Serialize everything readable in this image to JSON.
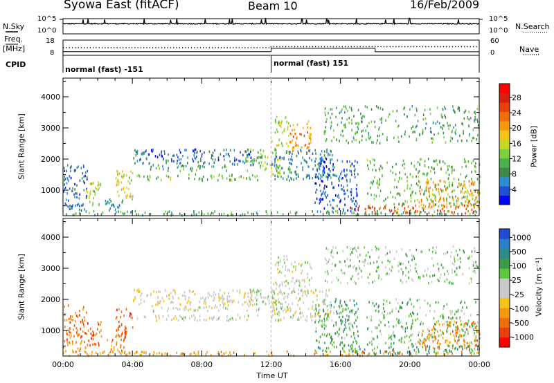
{
  "header": {
    "station": "Syowa East (fitACF)",
    "beam": "Beam 10",
    "date": "16/Feb/2009"
  },
  "side_labels": {
    "nsky": "N.Sky",
    "freq_line1": "Freq.",
    "freq_line2": "[MHz]",
    "cpid": "CPID",
    "nsearch": "N.Search",
    "nave": "Nave"
  },
  "cpid_labels": {
    "first": "normal (fast) -151",
    "second": "normal (fast) 151"
  },
  "chart_data": [
    {
      "type": "line",
      "name": "noise-panel",
      "ylabel_left": "N.Sky",
      "ylabel_right": "N.Search",
      "left_ticks": [
        "10^5",
        "10^0"
      ],
      "right_ticks": [
        "10^5",
        "10^0"
      ],
      "xlim": [
        0,
        24
      ]
    },
    {
      "type": "line",
      "name": "frequency-panel",
      "ylabel_left": "Freq. [MHz]",
      "ylabel_right": "Nave",
      "left_ticks": [
        "18",
        "8"
      ],
      "right_ticks": [
        "60",
        "0"
      ],
      "freq_series": {
        "x": [
          0,
          12,
          12,
          18,
          18,
          24
        ],
        "y": [
          10.4,
          10.4,
          12.6,
          12.6,
          10.3,
          10.3
        ]
      },
      "nave_series": {
        "x": [
          0,
          12,
          12,
          24
        ],
        "y": [
          30,
          30,
          34,
          34
        ]
      },
      "xlim": [
        0,
        24
      ]
    },
    {
      "type": "heatmap",
      "name": "power-panel",
      "ylabel": "Slant Range [km]",
      "yticks": [
        "1000",
        "2000",
        "3000",
        "4000"
      ],
      "ylim": [
        180,
        4600
      ],
      "xlim": [
        0,
        24
      ],
      "colorbar_title": "Power [dB]",
      "colorbar_ticks": [
        "4",
        "8",
        "12",
        "16",
        "20",
        "24",
        "28"
      ],
      "colorbar_colors": [
        "#0000ff",
        "#1e50d2",
        "#2e8bd0",
        "#3c8a46",
        "#49b24b",
        "#7dcf3b",
        "#c9d621",
        "#f5c317",
        "#f59a0f",
        "#f06e0a",
        "#e8400a",
        "#d81e0f",
        "#ff0000"
      ],
      "regions": [
        {
          "t0": 0.0,
          "t1": 1.4,
          "r0": 300,
          "r1": 1800,
          "level": 0.15
        },
        {
          "t0": 1.3,
          "t1": 2.2,
          "r0": 500,
          "r1": 1300,
          "level": 0.45
        },
        {
          "t0": 2.4,
          "t1": 3.4,
          "r0": 300,
          "r1": 700,
          "level": 0.2
        },
        {
          "t0": 3.0,
          "t1": 4.0,
          "r0": 700,
          "r1": 1700,
          "level": 0.55
        },
        {
          "t0": 3.8,
          "t1": 11.2,
          "r0": 1300,
          "r1": 1500,
          "level": 0.35
        },
        {
          "t0": 5.0,
          "t1": 9.5,
          "r0": 1600,
          "r1": 1800,
          "level": 0.3
        },
        {
          "t0": 4.0,
          "t1": 11.0,
          "r0": 1800,
          "r1": 2300,
          "level": 0.12
        },
        {
          "t0": 10.5,
          "t1": 12.0,
          "r0": 1600,
          "r1": 2300,
          "level": 0.4
        },
        {
          "t0": 12.0,
          "t1": 12.5,
          "r0": 1300,
          "r1": 2600,
          "level": 0.5
        },
        {
          "t0": 12.2,
          "t1": 13.0,
          "r0": 2400,
          "r1": 3400,
          "level": 0.45
        },
        {
          "t0": 13.0,
          "t1": 14.3,
          "r0": 2200,
          "r1": 3200,
          "level": 0.7
        },
        {
          "t0": 12.0,
          "t1": 15.5,
          "r0": 1300,
          "r1": 2300,
          "level": 0.2
        },
        {
          "t0": 14.5,
          "t1": 17.0,
          "r0": 300,
          "r1": 2000,
          "level": 0.12
        },
        {
          "t0": 16.5,
          "t1": 24.0,
          "r0": 250,
          "r1": 500,
          "level": 0.8
        },
        {
          "t0": 17.5,
          "t1": 24.0,
          "r0": 500,
          "r1": 2000,
          "level": 0.35
        },
        {
          "t0": 20.5,
          "t1": 24.0,
          "r0": 400,
          "r1": 1300,
          "level": 0.65
        },
        {
          "t0": 15.0,
          "t1": 24.0,
          "r0": 2500,
          "r1": 3700,
          "level": 0.3
        },
        {
          "t0": 0.0,
          "t1": 24.0,
          "r0": 180,
          "r1": 320,
          "level": 0.3
        }
      ]
    },
    {
      "type": "heatmap",
      "name": "velocity-panel",
      "ylabel": "Slant Range [km]",
      "yticks": [
        "1000",
        "2000",
        "3000",
        "4000"
      ],
      "ylim": [
        180,
        4600
      ],
      "xlim": [
        0,
        24
      ],
      "xticks": [
        "00:00",
        "04:00",
        "08:00",
        "12:00",
        "16:00",
        "20:00",
        "00:00"
      ],
      "xlabel": "Time UT",
      "colorbar_title": "Velocity [m s⁻¹]",
      "colorbar_ticks": [
        "1000",
        "500",
        "100",
        "25",
        "-25",
        "-100",
        "-500",
        "-1000"
      ],
      "colorbar_colors": [
        "#1e4bd2",
        "#2b7fc8",
        "#2e8b8b",
        "#3c9a46",
        "#5cc73b",
        "#c8c8c8",
        "#c8c8c8",
        "#f5c317",
        "#f59a0f",
        "#f06e0a",
        "#e8400a",
        "#ff0000"
      ],
      "regions": [
        {
          "t0": 0.0,
          "t1": 1.4,
          "r0": 300,
          "r1": 1800,
          "level": 0.8
        },
        {
          "t0": 1.3,
          "t1": 2.2,
          "r0": 500,
          "r1": 1300,
          "level": 0.85
        },
        {
          "t0": 2.5,
          "t1": 3.5,
          "r0": 250,
          "r1": 700,
          "level": 0.75
        },
        {
          "t0": 3.0,
          "t1": 4.0,
          "r0": 700,
          "r1": 1700,
          "level": 0.85
        },
        {
          "t0": 3.8,
          "t1": 11.2,
          "r0": 1300,
          "r1": 1500,
          "level": 0.5
        },
        {
          "t0": 5.0,
          "t1": 9.5,
          "r0": 1600,
          "r1": 1800,
          "level": 0.5
        },
        {
          "t0": 4.0,
          "t1": 11.0,
          "r0": 1800,
          "r1": 2300,
          "level": 0.55
        },
        {
          "t0": 10.5,
          "t1": 12.0,
          "r0": 1600,
          "r1": 2300,
          "level": 0.45
        },
        {
          "t0": 12.0,
          "t1": 12.5,
          "r0": 1300,
          "r1": 2600,
          "level": 0.5
        },
        {
          "t0": 12.2,
          "t1": 13.0,
          "r0": 2400,
          "r1": 3400,
          "level": 0.5
        },
        {
          "t0": 13.0,
          "t1": 14.3,
          "r0": 2200,
          "r1": 3200,
          "level": 0.5
        },
        {
          "t0": 12.0,
          "t1": 15.5,
          "r0": 1300,
          "r1": 2300,
          "level": 0.5
        },
        {
          "t0": 14.5,
          "t1": 17.0,
          "r0": 300,
          "r1": 2000,
          "level": 0.3
        },
        {
          "t0": 16.5,
          "t1": 24.0,
          "r0": 250,
          "r1": 500,
          "level": 0.25
        },
        {
          "t0": 17.5,
          "t1": 24.0,
          "r0": 500,
          "r1": 2000,
          "level": 0.35
        },
        {
          "t0": 20.5,
          "t1": 24.0,
          "r0": 400,
          "r1": 1300,
          "level": 0.75
        },
        {
          "t0": 15.0,
          "t1": 24.0,
          "r0": 2500,
          "r1": 3700,
          "level": 0.4
        },
        {
          "t0": 0.0,
          "t1": 24.0,
          "r0": 180,
          "r1": 320,
          "level": 0.7
        }
      ]
    }
  ]
}
